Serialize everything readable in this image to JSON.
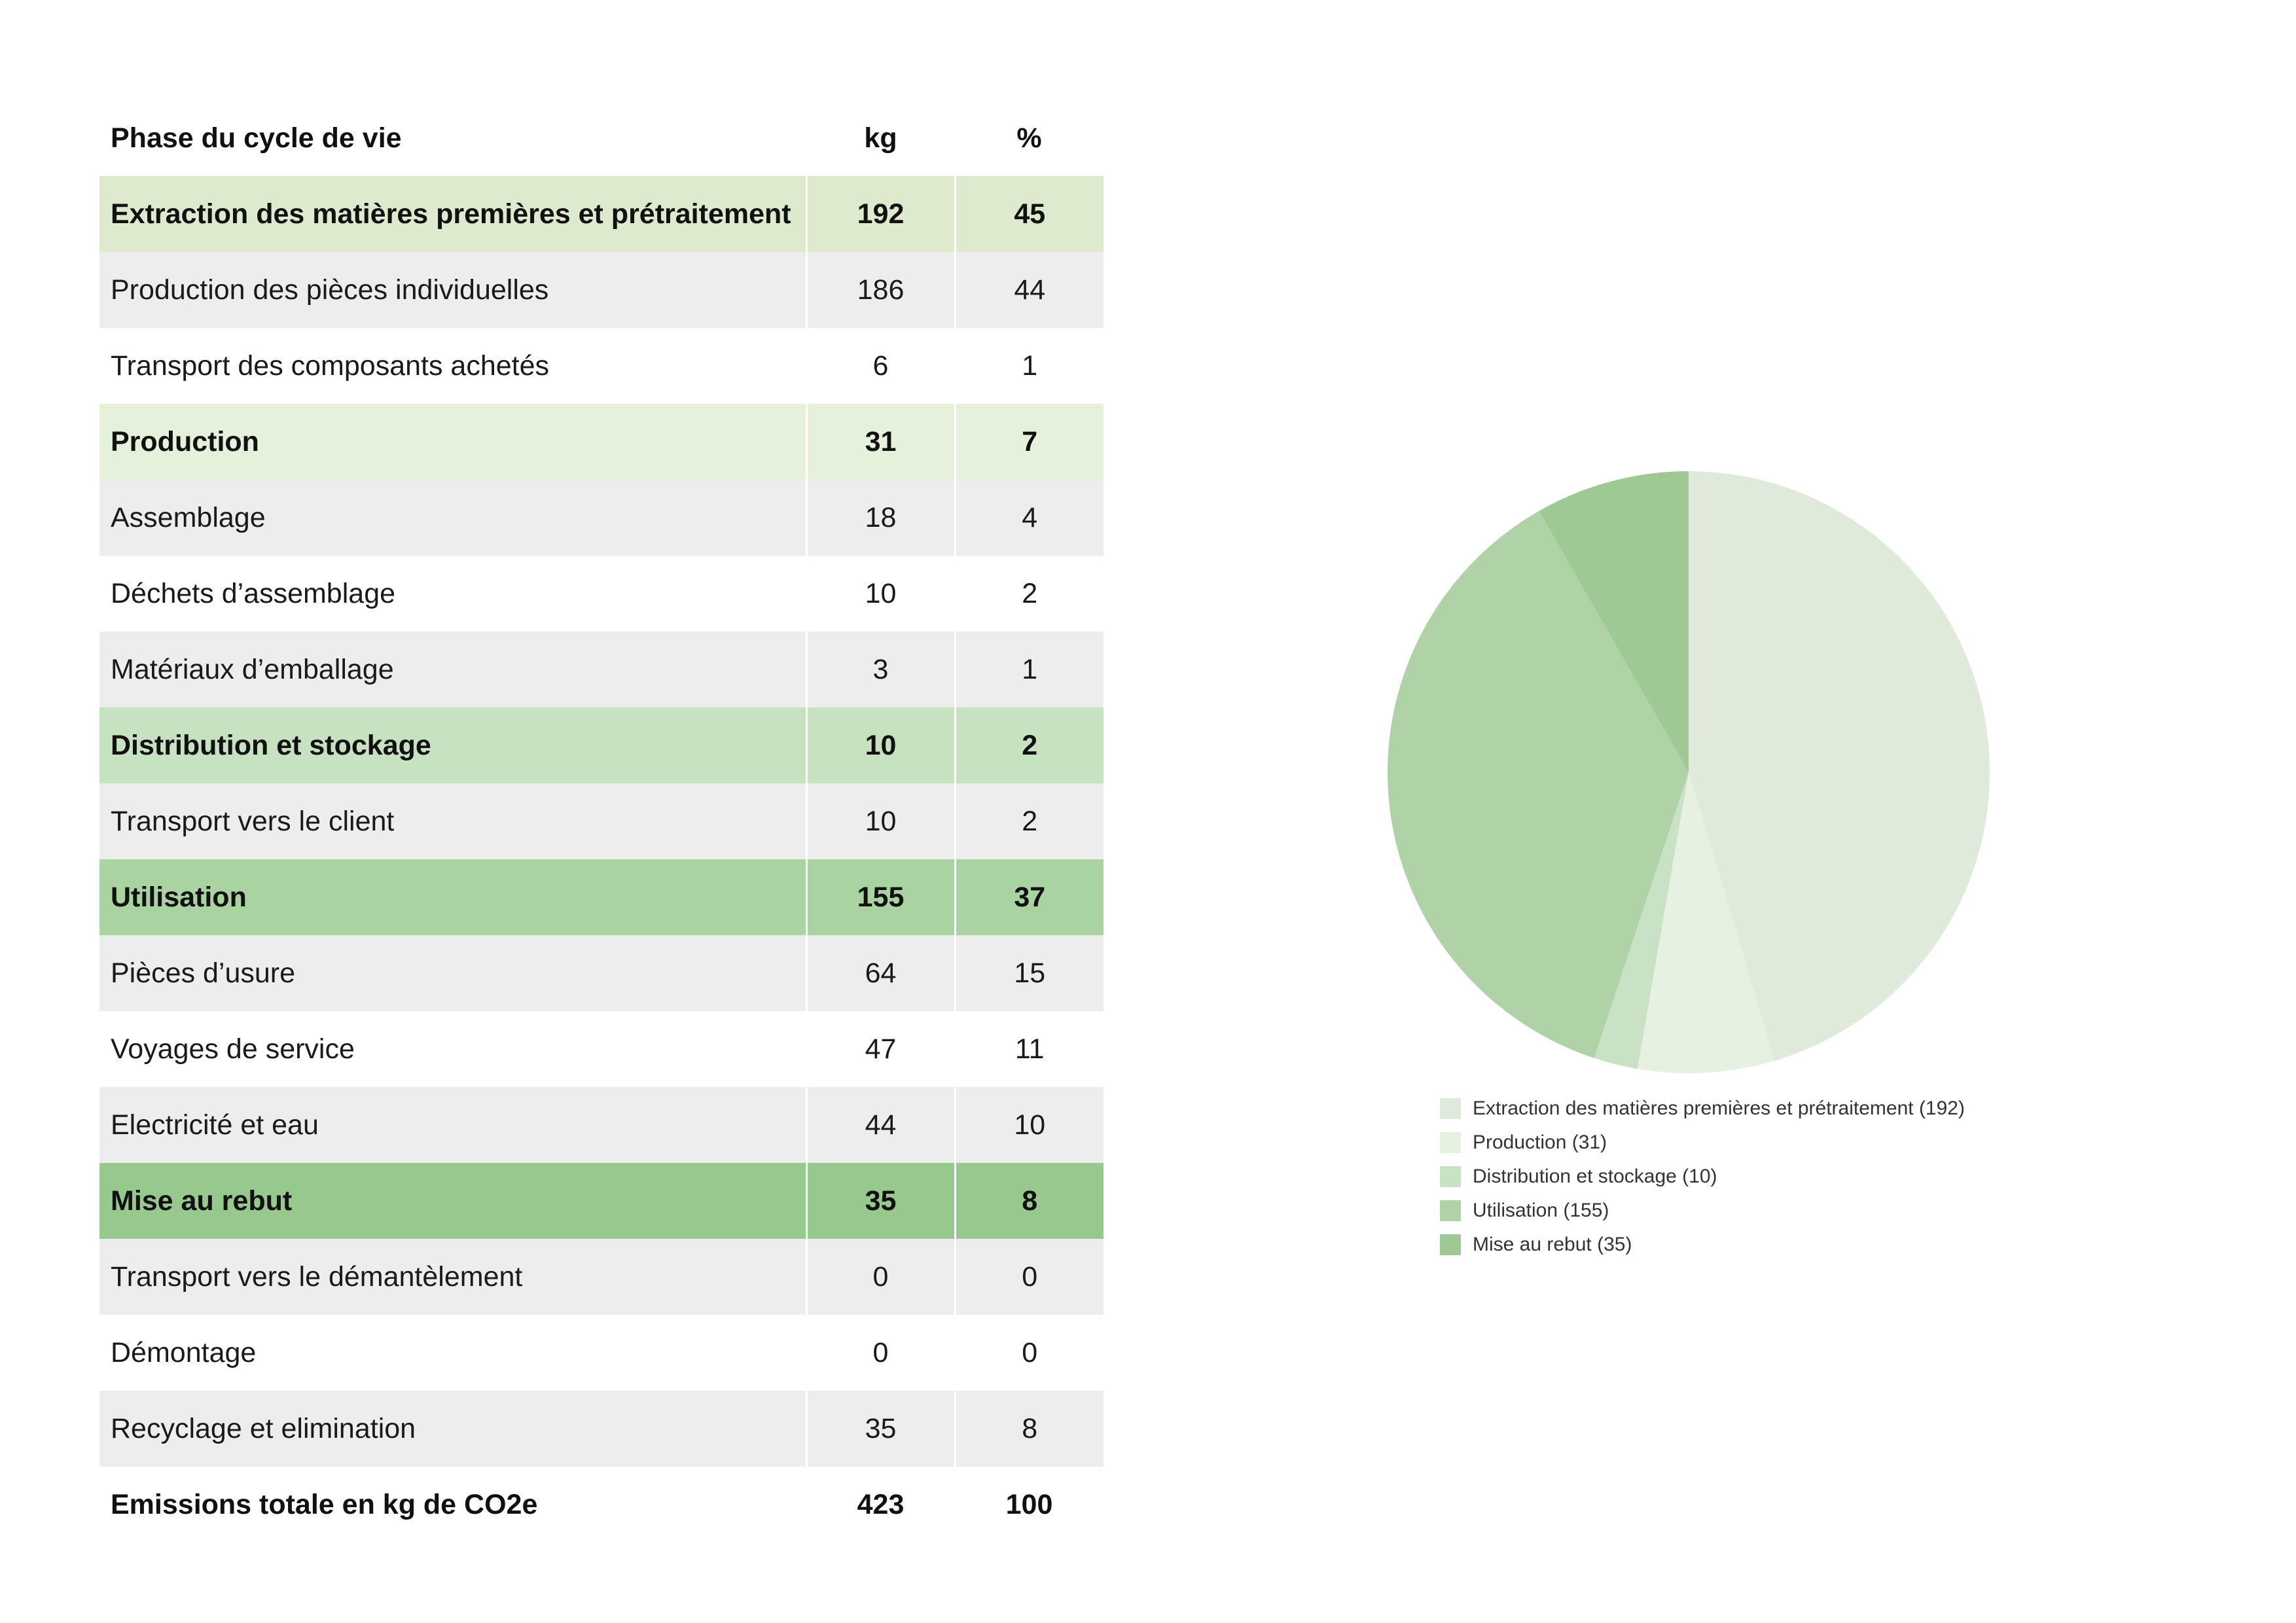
{
  "table": {
    "headers": {
      "phase": "Phase du cycle de vie",
      "kg": "kg",
      "pct": "%"
    },
    "rows": [
      {
        "kind": "phase",
        "label": "Extraction des matières premières et prétraitement",
        "kg": "192",
        "pct": "45",
        "color": "#ddeace"
      },
      {
        "kind": "sub",
        "label": "Production des pièces individuelles",
        "kg": "186",
        "pct": "44"
      },
      {
        "kind": "sub",
        "label": "Transport des composants achetés",
        "kg": "6",
        "pct": "1"
      },
      {
        "kind": "phase",
        "label": "Production",
        "kg": "31",
        "pct": "7",
        "color": "#e6f1dc"
      },
      {
        "kind": "sub",
        "label": "Assemblage",
        "kg": "18",
        "pct": "4"
      },
      {
        "kind": "sub",
        "label": "Déchets d’assemblage",
        "kg": "10",
        "pct": "2"
      },
      {
        "kind": "sub",
        "label": "Matériaux d’emballage",
        "kg": "3",
        "pct": "1"
      },
      {
        "kind": "phase",
        "label": "Distribution et stockage",
        "kg": "10",
        "pct": "2",
        "color": "#c7e2c0"
      },
      {
        "kind": "sub",
        "label": "Transport vers le client",
        "kg": "10",
        "pct": "2"
      },
      {
        "kind": "phase",
        "label": "Utilisation",
        "kg": "155",
        "pct": "37",
        "color": "#a9d3a0"
      },
      {
        "kind": "sub",
        "label": "Pièces d’usure",
        "kg": "64",
        "pct": "15"
      },
      {
        "kind": "sub",
        "label": "Voyages de service",
        "kg": "47",
        "pct": "11"
      },
      {
        "kind": "sub",
        "label": "Electricité et eau",
        "kg": "44",
        "pct": "10"
      },
      {
        "kind": "phase",
        "label": "Mise au rebut",
        "kg": "35",
        "pct": "8",
        "color": "#97c98e"
      },
      {
        "kind": "sub",
        "label": "Transport vers le démantèlement",
        "kg": "0",
        "pct": "0"
      },
      {
        "kind": "sub",
        "label": "Démontage",
        "kg": "0",
        "pct": "0"
      },
      {
        "kind": "sub",
        "label": "Recyclage et elimination",
        "kg": "35",
        "pct": "8"
      }
    ],
    "total": {
      "label": "Emissions totale en kg de CO2e",
      "kg": "423",
      "pct": "100"
    },
    "sub_row_colors": [
      "#ededee",
      "#ffffff"
    ]
  },
  "chart_data": {
    "type": "pie",
    "categories": [
      "Extraction des matières premières et prétraitement",
      "Production",
      "Distribution et stockage",
      "Utilisation",
      "Mise au rebut"
    ],
    "values": [
      192,
      31,
      10,
      155,
      35
    ],
    "colors": [
      "#dfeadb",
      "#e6f1e1",
      "#c9e1c4",
      "#afd2a7",
      "#9ec894"
    ],
    "legend": {
      "position": "below",
      "labels": [
        "Extraction des matières premières et prétraitement (192)",
        "Production (31)",
        "Distribution et stockage (10)",
        "Utilisation (155)",
        "Mise au rebut (35)"
      ]
    }
  }
}
